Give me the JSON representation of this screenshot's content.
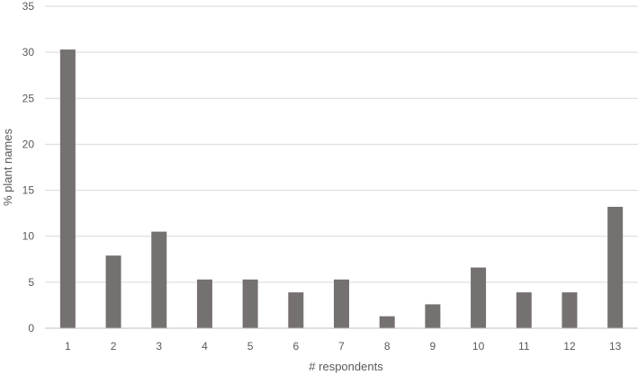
{
  "chart_data": {
    "type": "bar",
    "categories": [
      "1",
      "2",
      "3",
      "4",
      "5",
      "6",
      "7",
      "8",
      "9",
      "10",
      "11",
      "12",
      "13"
    ],
    "values": [
      30.3,
      7.9,
      10.5,
      5.3,
      5.3,
      3.9,
      5.3,
      1.3,
      2.6,
      6.6,
      3.9,
      3.9,
      13.2
    ],
    "xlabel": "# respondents",
    "ylabel": "% plant names",
    "ylim": [
      0,
      35
    ],
    "yticks": [
      "0",
      "5",
      "10",
      "15",
      "20",
      "25",
      "30",
      "35"
    ],
    "grid": true,
    "legend": "none",
    "bar_color": "#767171"
  }
}
